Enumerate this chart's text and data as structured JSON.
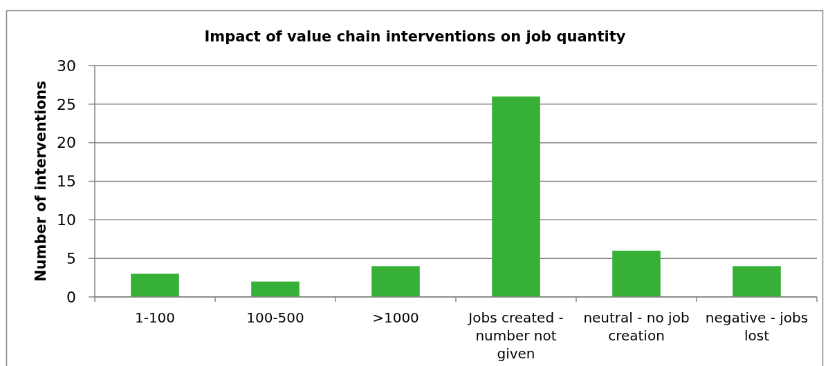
{
  "chart_data": {
    "type": "bar",
    "title": "Impact of value chain interventions on job quantity",
    "ylabel": "Number of interventions",
    "categories": [
      "1-100",
      "100-500",
      ">1000",
      "Jobs created - number not given",
      "neutral - no job creation",
      "negative - jobs lost"
    ],
    "values": [
      3,
      2,
      4,
      26,
      6,
      4
    ],
    "color": "#36b037",
    "ylim": [
      0,
      30
    ],
    "yticks": [
      0,
      5,
      10,
      15,
      20,
      25,
      30
    ],
    "grid": "y"
  }
}
